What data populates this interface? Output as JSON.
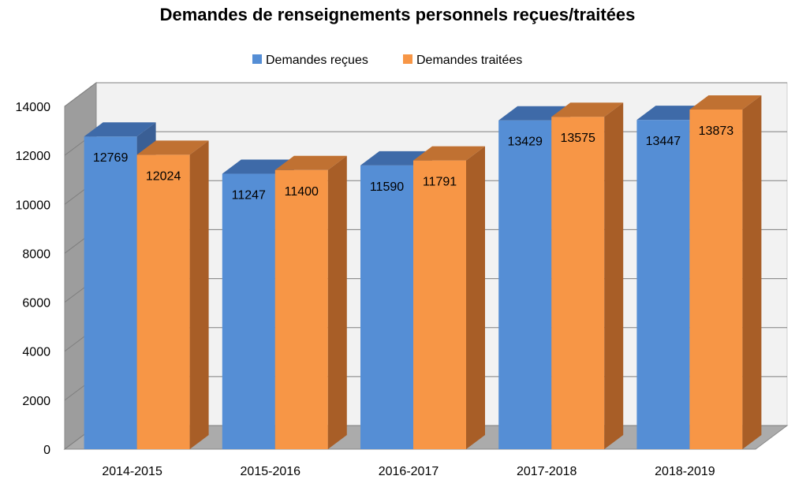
{
  "chart_data": {
    "type": "bar",
    "title": "Demandes de renseignements personnels reçues/traitées",
    "categories": [
      "2014-2015",
      "2015-2016",
      "2016-2017",
      "2017-2018",
      "2018-2019"
    ],
    "series": [
      {
        "name": "Demandes reçues",
        "values": [
          12769,
          11247,
          11590,
          13429,
          13447
        ],
        "color": "#558ED5",
        "top_color": "#3E6AA8",
        "side_color": "#3A5F95"
      },
      {
        "name": "Demandes traitées",
        "values": [
          12024,
          11400,
          11791,
          13575,
          13873
        ],
        "color": "#F79646",
        "top_color": "#C07132",
        "side_color": "#A85E27"
      }
    ],
    "ylim": [
      0,
      14000
    ],
    "yticks": [
      0,
      2000,
      4000,
      6000,
      8000,
      10000,
      12000,
      14000
    ],
    "grid": true,
    "legend_position": "top",
    "data_labels": true
  }
}
